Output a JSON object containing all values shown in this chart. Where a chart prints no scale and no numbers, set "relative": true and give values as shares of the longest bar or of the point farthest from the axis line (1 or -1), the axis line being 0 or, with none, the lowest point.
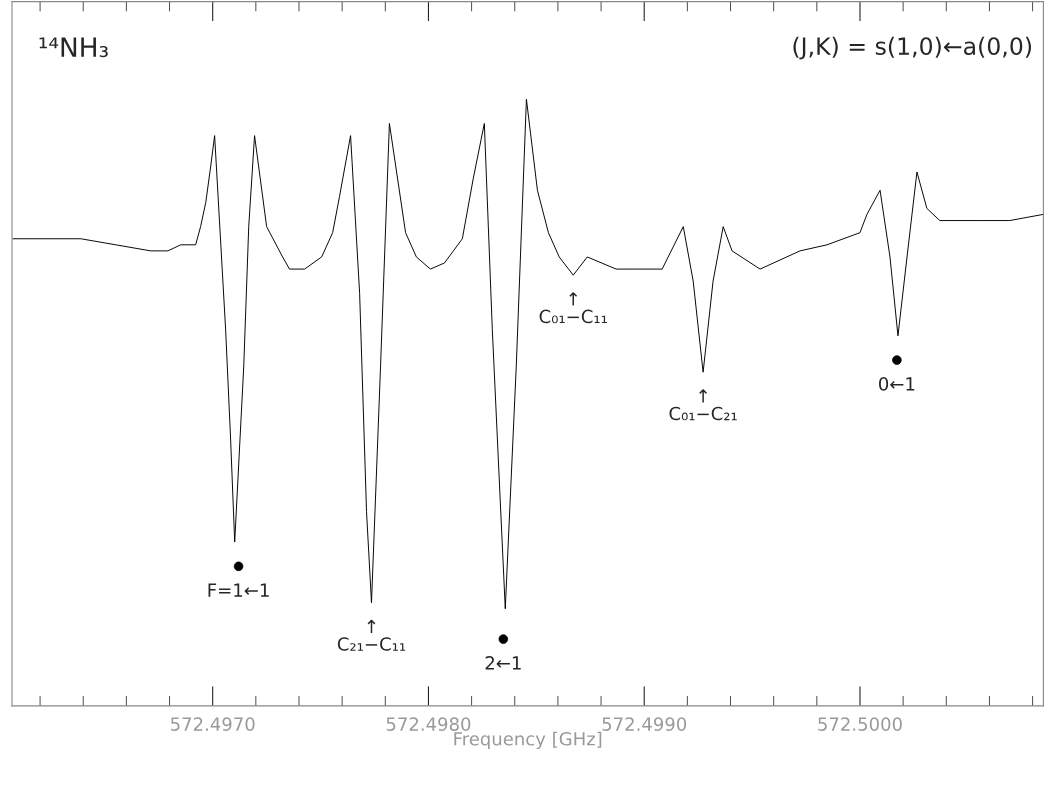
{
  "chart_data": {
    "type": "line",
    "xlabel": "Frequency [GHz]",
    "relative": true,
    "xlim": [
      572.49607,
      572.50085
    ],
    "xticks": [
      {
        "value": 572.4962,
        "label": null
      },
      {
        "value": 572.4964,
        "label": null
      },
      {
        "value": 572.4966,
        "label": null
      },
      {
        "value": 572.4968,
        "label": null
      },
      {
        "value": 572.497,
        "label": "572.4970"
      },
      {
        "value": 572.4972,
        "label": null
      },
      {
        "value": 572.4974,
        "label": null
      },
      {
        "value": 572.4976,
        "label": null
      },
      {
        "value": 572.4978,
        "label": null
      },
      {
        "value": 572.498,
        "label": "572.4980"
      },
      {
        "value": 572.4982,
        "label": null
      },
      {
        "value": 572.4984,
        "label": null
      },
      {
        "value": 572.4986,
        "label": null
      },
      {
        "value": 572.4988,
        "label": null
      },
      {
        "value": 572.499,
        "label": "572.4990"
      },
      {
        "value": 572.4992,
        "label": null
      },
      {
        "value": 572.4994,
        "label": null
      },
      {
        "value": 572.4996,
        "label": null
      },
      {
        "value": 572.4998,
        "label": null
      },
      {
        "value": 572.5,
        "label": "572.5000"
      },
      {
        "value": 572.5002,
        "label": null
      },
      {
        "value": 572.5004,
        "label": null
      },
      {
        "value": 572.5006,
        "label": null
      },
      {
        "value": 572.5008,
        "label": null
      }
    ],
    "tick_labels": "x",
    "grid": false,
    "series": [
      {
        "color": "#000000",
        "marker": "none",
        "line_style": "solid",
        "x": [
          572.496074,
          572.496204,
          572.496389,
          572.496551,
          572.496713,
          572.496792,
          572.496852,
          572.496921,
          572.496944,
          572.496968,
          572.496991,
          572.497009,
          572.49706,
          572.497083,
          572.497102,
          572.497144,
          572.497167,
          572.497194,
          572.49725,
          572.497324,
          572.497356,
          572.497426,
          572.497505,
          572.497556,
          572.497588,
          572.497639,
          572.497681,
          572.497713,
          572.497736,
          572.497778,
          572.497819,
          572.497894,
          572.497944,
          572.498009,
          572.498074,
          572.498157,
          572.498208,
          572.498259,
          572.498296,
          572.498356,
          572.498407,
          572.498454,
          572.498505,
          572.498556,
          572.498606,
          572.498671,
          572.498736,
          572.49887,
          572.498954,
          572.499083,
          572.499181,
          572.499227,
          572.499273,
          572.499319,
          572.499366,
          572.499407,
          572.499537,
          572.499722,
          572.499847,
          572.5,
          572.500032,
          572.500093,
          572.500139,
          572.500176,
          572.500218,
          572.500264,
          572.50031,
          572.50037,
          572.500542,
          572.500694,
          572.500847
        ],
        "values": [
          0.77,
          0.77,
          0.77,
          0.76,
          0.75,
          0.75,
          0.76,
          0.76,
          0.79,
          0.83,
          0.89,
          0.94,
          0.62,
          0.44,
          0.27,
          0.56,
          0.79,
          0.94,
          0.79,
          0.74,
          0.72,
          0.72,
          0.74,
          0.78,
          0.84,
          0.94,
          0.68,
          0.32,
          0.17,
          0.56,
          0.96,
          0.78,
          0.74,
          0.72,
          0.73,
          0.77,
          0.87,
          0.96,
          0.62,
          0.16,
          0.56,
          1.0,
          0.85,
          0.78,
          0.74,
          0.71,
          0.74,
          0.72,
          0.72,
          0.72,
          0.79,
          0.7,
          0.55,
          0.7,
          0.79,
          0.75,
          0.72,
          0.75,
          0.76,
          0.78,
          0.81,
          0.85,
          0.74,
          0.61,
          0.74,
          0.88,
          0.82,
          0.8,
          0.8,
          0.8,
          0.81
        ]
      },
      {
        "type": "scatter",
        "color": "#000000",
        "marker": "circle",
        "x": [
          572.49712,
          572.498347,
          572.500171
        ],
        "values": [
          0.23,
          0.11,
          0.57
        ]
      }
    ],
    "annotations": [
      "¹⁴NH₃",
      "(J,K) = s(1,0)←a(0,0)",
      {
        "text": "F=1←1",
        "x": 572.49712,
        "y": 0.23
      },
      {
        "text": "↑\nC₂₁−C₁₁",
        "x": 572.497736,
        "y": 0.17
      },
      {
        "text": "2←1",
        "x": 572.498347,
        "y": 0.11
      },
      {
        "text": "↑\nC₀₁−C₁₁",
        "x": 572.498671,
        "y": 0.71
      },
      {
        "text": "↑\nC₀₁−C₂₁",
        "x": 572.499273,
        "y": 0.55
      },
      {
        "text": "0←1",
        "x": 572.500171,
        "y": 0.57
      }
    ]
  }
}
